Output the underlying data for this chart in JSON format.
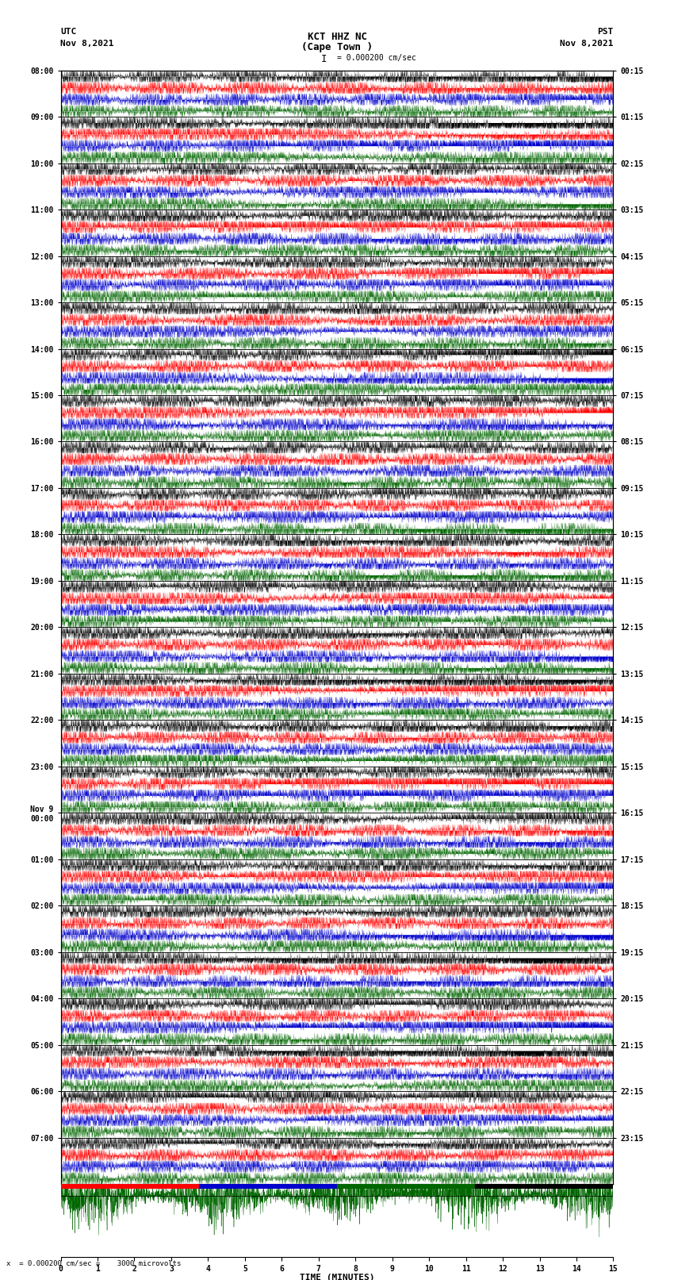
{
  "title_line1": "KCT HHZ NC",
  "title_line2": "(Cape Town )",
  "scale_label": "= 0.000200 cm/sec",
  "bottom_label": "= 0.000200 cm/sec =    3000 microvolts",
  "xlabel": "TIME (MINUTES)",
  "left_timezone": "UTC",
  "left_date": "Nov 8,2021",
  "right_timezone": "PST",
  "right_date": "Nov 8,2021",
  "num_rows": 24,
  "display_minutes": 15,
  "bg_color": "#ffffff",
  "seed": 42,
  "fig_width": 8.5,
  "fig_height": 16.13,
  "dpi": 100,
  "left_ytick_hours": [
    "08:00",
    "09:00",
    "10:00",
    "11:00",
    "12:00",
    "13:00",
    "14:00",
    "15:00",
    "16:00",
    "17:00",
    "18:00",
    "19:00",
    "20:00",
    "21:00",
    "22:00",
    "23:00",
    "Nov 9\n00:00",
    "01:00",
    "02:00",
    "03:00",
    "04:00",
    "05:00",
    "06:00",
    "07:00"
  ],
  "right_ytick_labels": [
    "00:15",
    "01:15",
    "02:15",
    "03:15",
    "04:15",
    "05:15",
    "06:15",
    "07:15",
    "08:15",
    "09:15",
    "10:15",
    "11:15",
    "12:15",
    "13:15",
    "14:15",
    "15:15",
    "16:15",
    "17:15",
    "18:15",
    "19:15",
    "20:15",
    "21:15",
    "22:15",
    "23:15"
  ],
  "xtick_labels": [
    "0",
    "1",
    "2",
    "3",
    "4",
    "5",
    "6",
    "7",
    "8",
    "9",
    "10",
    "11",
    "12",
    "13",
    "14",
    "15"
  ],
  "colors": [
    "#000000",
    "#ff0000",
    "#0000ff",
    "#008000"
  ],
  "sub_colors": [
    "#000000",
    "#ff0000",
    "#0000cc",
    "#006600"
  ],
  "num_subrows": 4
}
